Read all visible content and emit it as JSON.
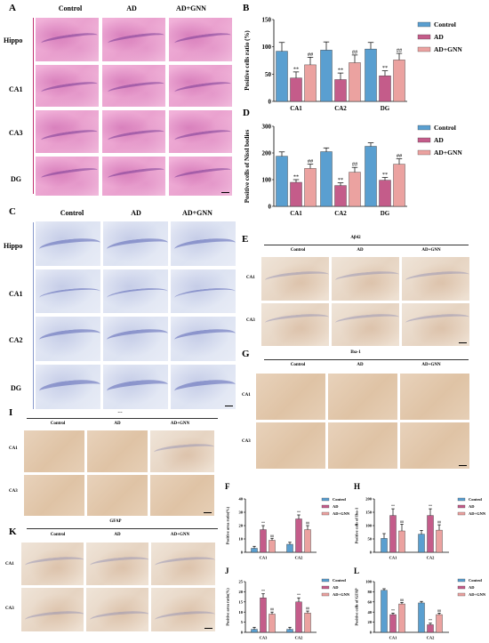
{
  "panel_letters": {
    "A": "A",
    "B": "B",
    "C": "C",
    "D": "D",
    "E": "E",
    "F": "F",
    "G": "G",
    "H": "H",
    "I": "I",
    "J": "J",
    "K": "K",
    "L": "L"
  },
  "group_labels": {
    "control": "Control",
    "ad": "AD",
    "ad_gnn": "AD+GNN"
  },
  "panelA": {
    "rows": [
      "Hippo",
      "CA1",
      "CA3",
      "DG"
    ]
  },
  "panelC": {
    "rows": [
      "Hippo",
      "CA1",
      "CA2",
      "DG"
    ]
  },
  "panelE": {
    "title": "Aβ42",
    "rows": [
      "CA1",
      "CA3"
    ]
  },
  "panelG": {
    "title": "Iba-1",
    "rows": [
      "CA1",
      "CA3"
    ]
  },
  "panelI": {
    "title": "---",
    "rows": [
      "CA1",
      "CA3"
    ]
  },
  "panelK": {
    "title": "GFAP",
    "rows": [
      "CA1",
      "CA3"
    ]
  },
  "colors": {
    "control": "#5a9fd0",
    "ad": "#c45c8a",
    "ad_gnn": "#eba2a0"
  },
  "chart_data": [
    {
      "id": "B",
      "type": "bar",
      "ylabel": "Positive cells ratio (%)",
      "categories": [
        "CA1",
        "CA2",
        "DG"
      ],
      "ylim": [
        0,
        150
      ],
      "yticks": [
        0,
        50,
        100,
        150
      ],
      "series": [
        {
          "name": "Control",
          "values": [
            92,
            94,
            96
          ],
          "err": [
            16,
            15,
            12
          ]
        },
        {
          "name": "AD",
          "values": [
            43,
            40,
            47
          ],
          "err": [
            11,
            12,
            9
          ]
        },
        {
          "name": "AD+GNN",
          "values": [
            67,
            71,
            76
          ],
          "err": [
            14,
            14,
            12
          ]
        }
      ],
      "sig_ad": "**",
      "sig_gnn": "##"
    },
    {
      "id": "D",
      "type": "bar",
      "ylabel": "Positive cells of Nissl bodies",
      "categories": [
        "CA1",
        "CA2",
        "DG"
      ],
      "ylim": [
        0,
        300
      ],
      "yticks": [
        0,
        100,
        200,
        300
      ],
      "series": [
        {
          "name": "Control",
          "values": [
            188,
            205,
            225
          ],
          "err": [
            16,
            14,
            13
          ]
        },
        {
          "name": "AD",
          "values": [
            90,
            78,
            98
          ],
          "err": [
            10,
            10,
            10
          ]
        },
        {
          "name": "AD+GNN",
          "values": [
            142,
            128,
            158
          ],
          "err": [
            16,
            18,
            20
          ]
        }
      ],
      "sig_ad": "**",
      "sig_gnn": "##"
    },
    {
      "id": "F",
      "type": "bar",
      "ylabel": "Positive area ratio(%)",
      "categories": [
        "CA1",
        "CA2"
      ],
      "ylim": [
        0,
        40
      ],
      "yticks": [
        0,
        10,
        20,
        30,
        40
      ],
      "series": [
        {
          "name": "Control",
          "values": [
            3,
            6
          ],
          "err": [
            1.5,
            1.5
          ]
        },
        {
          "name": "AD",
          "values": [
            17,
            25
          ],
          "err": [
            3,
            3
          ]
        },
        {
          "name": "AD+GNN",
          "values": [
            9,
            17
          ],
          "err": [
            1.5,
            3
          ]
        }
      ],
      "sig_ad": "**",
      "sig_gnn": "##"
    },
    {
      "id": "H",
      "type": "bar",
      "ylabel": "Positive cells of Iba-1",
      "categories": [
        "CA1",
        "CA2"
      ],
      "ylim": [
        0,
        200
      ],
      "yticks": [
        0,
        50,
        100,
        150,
        200
      ],
      "series": [
        {
          "name": "Control",
          "values": [
            52,
            68
          ],
          "err": [
            18,
            14
          ]
        },
        {
          "name": "AD",
          "values": [
            138,
            138
          ],
          "err": [
            25,
            25
          ]
        },
        {
          "name": "AD+GNN",
          "values": [
            80,
            83
          ],
          "err": [
            25,
            20
          ]
        }
      ],
      "sig_ad": "**",
      "sig_gnn": "##"
    },
    {
      "id": "J",
      "type": "bar",
      "ylabel": "Positive area ratio(%)",
      "categories": [
        "CA3",
        "CA2"
      ],
      "ylim": [
        0,
        25
      ],
      "yticks": [
        0,
        5,
        10,
        15,
        20,
        25
      ],
      "series": [
        {
          "name": "Control",
          "values": [
            1.5,
            1.5
          ],
          "err": [
            1,
            1
          ]
        },
        {
          "name": "AD",
          "values": [
            17,
            15
          ],
          "err": [
            2,
            2
          ]
        },
        {
          "name": "AD+GNN",
          "values": [
            9,
            9.5
          ],
          "err": [
            1,
            1
          ]
        }
      ],
      "sig_ad": "**",
      "sig_gnn": "##"
    },
    {
      "id": "L",
      "type": "bar",
      "ylabel": "Positive cells of GFAP",
      "categories": [
        "CA1",
        "CA2"
      ],
      "ylim": [
        0,
        100
      ],
      "yticks": [
        0,
        20,
        40,
        60,
        80,
        100
      ],
      "series": [
        {
          "name": "Control",
          "values": [
            83,
            58
          ],
          "err": [
            3,
            3
          ]
        },
        {
          "name": "AD",
          "values": [
            35,
            15
          ],
          "err": [
            3,
            3
          ]
        },
        {
          "name": "AD+GNN",
          "values": [
            56,
            35
          ],
          "err": [
            3,
            3
          ]
        }
      ],
      "sig_ad": "**",
      "sig_gnn": "##"
    }
  ]
}
